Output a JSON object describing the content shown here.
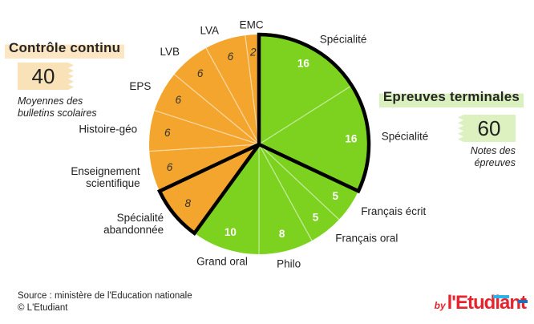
{
  "left_panel": {
    "heading": "Contrôle continu",
    "badge_value": "40",
    "subtitle_line1": "Moyennes des",
    "subtitle_line2": "bulletins scolaires"
  },
  "right_panel": {
    "heading": "Epreuves terminales",
    "badge_value": "60",
    "subtitle_line1": "Notes des",
    "subtitle_line2": "épreuves"
  },
  "footer": {
    "source_line1": "Source : ministère de l'Education nationale",
    "source_line2": "© L'Etudiant"
  },
  "logo": {
    "prefix": "by",
    "brand": "l'Etudiant",
    "red": "#e8232e",
    "cyan": "#2ab4e8",
    "blue": "#1d70b7"
  },
  "colors": {
    "continu_slice": "#f3a52d",
    "terminales_slice": "#7cd21f",
    "continu_highlight": "#fce6c4",
    "continu_badge": "#fae2b8",
    "terminales_highlight": "#daf0bf",
    "terminales_badge": "#dcf1bf",
    "group_outline": "#000000",
    "value_on_green": "#ffffff",
    "value_on_orange": "#333333"
  },
  "chart_data": {
    "type": "pie",
    "start_angle_deg": 0,
    "direction": "clockwise",
    "total": 100,
    "groups": {
      "continu": {
        "label": "Contrôle continu",
        "total": 40,
        "color": "#f3a52d"
      },
      "terminales": {
        "label": "Epreuves terminales",
        "total": 60,
        "color": "#7cd21f"
      }
    },
    "slices": [
      {
        "label": "Spécialité",
        "value": 16,
        "group": "terminales"
      },
      {
        "label": "Spécialité",
        "value": 16,
        "group": "terminales"
      },
      {
        "label": "Français écrit",
        "value": 5,
        "group": "terminales"
      },
      {
        "label": "Français oral",
        "value": 5,
        "group": "terminales"
      },
      {
        "label": "Philo",
        "value": 8,
        "group": "terminales"
      },
      {
        "label": "Grand oral",
        "value": 10,
        "group": "terminales"
      },
      {
        "label": "Spécialité\nabandonnée",
        "value": 8,
        "group": "continu"
      },
      {
        "label": "Enseignement\nscientifique",
        "value": 6,
        "group": "continu"
      },
      {
        "label": "Histoire-géo",
        "value": 6,
        "group": "continu"
      },
      {
        "label": "EPS",
        "value": 6,
        "group": "continu"
      },
      {
        "label": "LVB",
        "value": 6,
        "group": "continu"
      },
      {
        "label": "LVA",
        "value": 6,
        "group": "continu"
      },
      {
        "label": "EMC",
        "value": 2,
        "group": "continu"
      }
    ],
    "outlined_slice_ranges": [
      [
        0,
        1
      ],
      [
        6,
        6
      ]
    ]
  }
}
